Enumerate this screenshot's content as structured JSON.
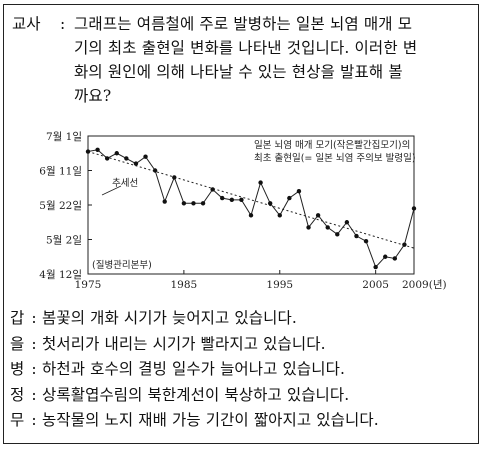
{
  "question": {
    "speaker": "교사",
    "lines": [
      "그래프는 여름철에 주로 발병하는 일본 뇌염 매개 모",
      "기의 최초 출현일 변화를 나타낸 것입니다. 이러한 변",
      "화의 원인에 의해 나타날 수 있는 현상을 발표해 볼",
      "까요?"
    ]
  },
  "chart_data": {
    "type": "line",
    "legend_box": [
      "일본 뇌염 매개 모기(작은빨간집모기)의",
      "최초 출현일(= 일본 뇌염 주의보 발령일)"
    ],
    "trend_label": "추세선",
    "source": "(질병관리본부)",
    "y_ticks": [
      "7월 1일",
      "6월 11일",
      "5월 22일",
      "5월 2일",
      "4월 12일"
    ],
    "y_tick_day_of_year": [
      182,
      162,
      142,
      122,
      102
    ],
    "x_ticks": [
      "1975",
      "1985",
      "1995",
      "2005",
      "2009(년)"
    ],
    "x_tick_years": [
      1975,
      1985,
      1995,
      2005,
      2009
    ],
    "x_range": [
      1975,
      2009
    ],
    "y_range_day_of_year": [
      102,
      182
    ],
    "series": [
      {
        "name": "",
        "points": [
          [
            1975,
            173
          ],
          [
            1976,
            174
          ],
          [
            1977,
            169
          ],
          [
            1978,
            172
          ],
          [
            1979,
            169
          ],
          [
            1980,
            166
          ],
          [
            1981,
            170
          ],
          [
            1982,
            162
          ],
          [
            1983,
            144
          ],
          [
            1984,
            158
          ],
          [
            1985,
            143
          ],
          [
            1986,
            143
          ],
          [
            1987,
            143
          ],
          [
            1988,
            151
          ],
          [
            1989,
            146
          ],
          [
            1990,
            145
          ],
          [
            1991,
            145
          ],
          [
            1992,
            136
          ],
          [
            1993,
            155
          ],
          [
            1994,
            143
          ],
          [
            1995,
            136
          ],
          [
            1996,
            146
          ],
          [
            1997,
            150
          ],
          [
            1998,
            129
          ],
          [
            1999,
            136
          ],
          [
            2000,
            129
          ],
          [
            2001,
            125
          ],
          [
            2002,
            132
          ],
          [
            2003,
            124
          ],
          [
            2004,
            121
          ],
          [
            2005,
            106
          ],
          [
            2006,
            112
          ],
          [
            2007,
            111
          ],
          [
            2008,
            119
          ],
          [
            2009,
            140
          ]
        ]
      }
    ],
    "trend": {
      "start": [
        1975,
        173
      ],
      "end": [
        2009,
        117
      ]
    }
  },
  "options": [
    {
      "label": "갑",
      "text": "봄꽃의 개화 시기가 늦어지고 있습니다."
    },
    {
      "label": "을",
      "text": "첫서리가 내리는 시기가 빨라지고 있습니다."
    },
    {
      "label": "병",
      "text": "하천과 호수의 결빙 일수가 늘어나고 있습니다."
    },
    {
      "label": "정",
      "text": "상록활엽수림의 북한계선이 북상하고 있습니다."
    },
    {
      "label": "무",
      "text": "농작물의 노지 재배 가능 기간이 짧아지고 있습니다."
    }
  ]
}
